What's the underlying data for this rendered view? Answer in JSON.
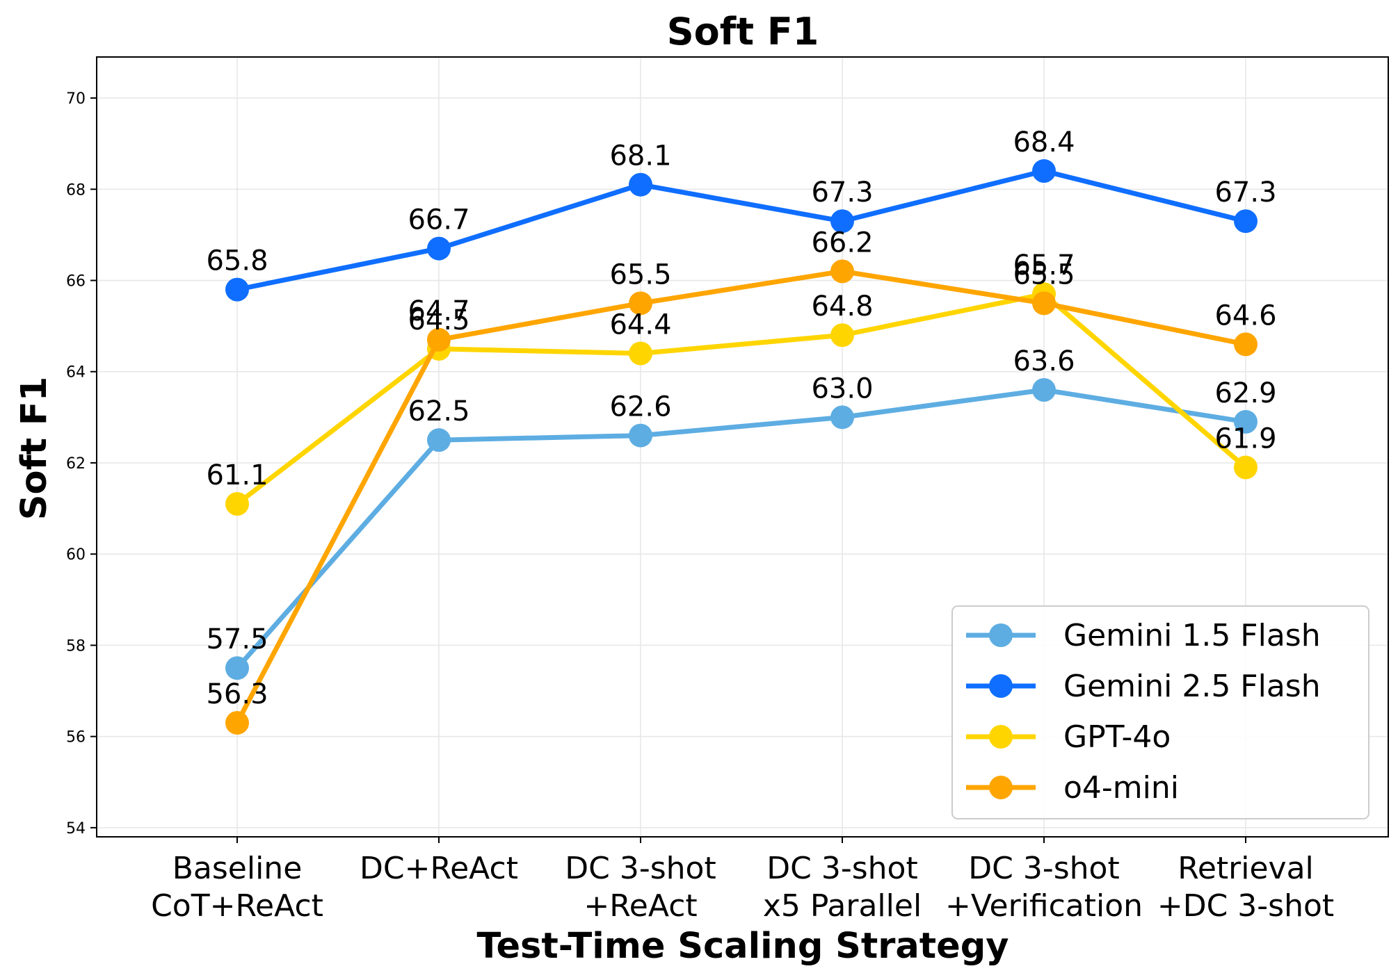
{
  "chart_data": {
    "type": "line",
    "title": "Soft F1",
    "xlabel": "Test-Time Scaling Strategy",
    "ylabel": "Soft F1",
    "categories": [
      [
        "Baseline",
        "CoT+ReAct"
      ],
      [
        "DC+ReAct"
      ],
      [
        "DC 3-shot",
        "+ReAct"
      ],
      [
        "DC 3-shot",
        "x5 Parallel"
      ],
      [
        "DC 3-shot",
        "+Verification"
      ],
      [
        "Retrieval",
        "+DC 3-shot"
      ]
    ],
    "ylim": [
      53.8,
      70.9
    ],
    "yticks": [
      54,
      56,
      58,
      60,
      62,
      64,
      66,
      68,
      70
    ],
    "grid": true,
    "legend_position": "lower-right",
    "series": [
      {
        "name": "Gemini 1.5 Flash",
        "color": "#5DADE2",
        "values": [
          57.5,
          62.5,
          62.6,
          63.0,
          63.6,
          62.9
        ]
      },
      {
        "name": "Gemini 2.5 Flash",
        "color": "#0F6EFF",
        "values": [
          65.8,
          66.7,
          68.1,
          67.3,
          68.4,
          67.3
        ]
      },
      {
        "name": "GPT-4o",
        "color": "#FFD500",
        "values": [
          61.1,
          64.5,
          64.4,
          64.8,
          65.7,
          61.9
        ]
      },
      {
        "name": "o4-mini",
        "color": "#FFA500",
        "values": [
          56.3,
          64.7,
          65.5,
          66.2,
          65.5,
          64.6
        ]
      }
    ]
  }
}
